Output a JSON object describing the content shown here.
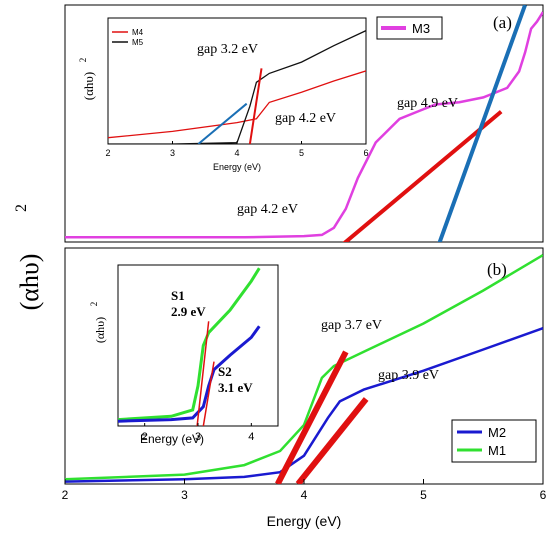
{
  "ylabel": "(αhυ)",
  "ylabel_sup": "2",
  "xlabel": "Energy (eV)",
  "chart_data": [
    {
      "type": "line",
      "panel_label": "(a)",
      "xlim": [
        2,
        6
      ],
      "legend": {
        "placement": "top-right",
        "entries": [
          {
            "name": "M3",
            "color": "#e040e0"
          }
        ]
      },
      "series": [
        {
          "name": "M3",
          "color": "#e040e0",
          "x": [
            2.0,
            2.5,
            3.0,
            3.5,
            4.0,
            4.15,
            4.25,
            4.35,
            4.45,
            4.6,
            4.8,
            4.95,
            5.1,
            5.3,
            5.5,
            5.7,
            5.8,
            5.85,
            5.9,
            5.95,
            6.0
          ],
          "y": [
            0.02,
            0.02,
            0.02,
            0.02,
            0.025,
            0.03,
            0.06,
            0.14,
            0.27,
            0.42,
            0.52,
            0.55,
            0.58,
            0.59,
            0.61,
            0.65,
            0.72,
            0.8,
            0.9,
            0.93,
            0.97
          ]
        }
      ],
      "fits": [
        {
          "color": "#e01010",
          "x": [
            4.23,
            5.65
          ],
          "y": [
            -0.05,
            0.55
          ]
        },
        {
          "color": "#1a6fb5",
          "x": [
            5.1,
            5.85
          ],
          "y": [
            -0.05,
            1.0
          ]
        }
      ],
      "annotations": [
        "gap 4.2 eV",
        "gap 4.9 eV"
      ],
      "inset": {
        "type": "line",
        "xlim": [
          2,
          6
        ],
        "xticks": [
          2,
          3,
          4,
          5,
          6
        ],
        "xlabel": "Energy (eV)",
        "ylabel": "(αhυ)",
        "ylabel_sup": "2",
        "legend": {
          "placement": "top-left",
          "entries": [
            {
              "name": "M4",
              "color": "#e01010"
            },
            {
              "name": "M5",
              "color": "#111111"
            }
          ]
        },
        "series": [
          {
            "name": "M4",
            "color": "#e01010",
            "x": [
              2,
              3,
              4,
              4.3,
              4.5,
              5,
              5.5,
              6
            ],
            "y": [
              0.05,
              0.1,
              0.17,
              0.2,
              0.33,
              0.41,
              0.5,
              0.58
            ]
          },
          {
            "name": "M5",
            "color": "#111111",
            "x": [
              2,
              3,
              4,
              4.2,
              4.3,
              4.5,
              5,
              5.5,
              6
            ],
            "y": [
              0.0,
              0.0,
              0.01,
              0.3,
              0.49,
              0.56,
              0.65,
              0.78,
              0.9
            ]
          }
        ],
        "fits": [
          {
            "color": "#e01010",
            "x": [
              4.2,
              4.38
            ],
            "y": [
              0.0,
              0.6
            ]
          },
          {
            "color": "#1a6fb5",
            "x": [
              3.4,
              4.15
            ],
            "y": [
              0.0,
              0.32
            ]
          }
        ],
        "annotations": [
          "gap 3.2 eV",
          "gap 4.2 eV"
        ]
      }
    },
    {
      "type": "line",
      "panel_label": "(b)",
      "xlim": [
        2,
        6
      ],
      "xticks": [
        2,
        3,
        4,
        5,
        6
      ],
      "xlabel": "Energy (eV)",
      "legend": {
        "placement": "bottom-right",
        "entries": [
          {
            "name": "M2",
            "color": "#1a1ad0"
          },
          {
            "name": "M1",
            "color": "#30e030"
          }
        ]
      },
      "series": [
        {
          "name": "M1",
          "color": "#30e030",
          "x": [
            2,
            3,
            3.5,
            3.8,
            4.0,
            4.15,
            4.25,
            4.5,
            5.0,
            5.5,
            6.0
          ],
          "y": [
            0.02,
            0.04,
            0.08,
            0.14,
            0.25,
            0.45,
            0.5,
            0.56,
            0.68,
            0.82,
            0.97
          ]
        },
        {
          "name": "M2",
          "color": "#1a1ad0",
          "x": [
            2,
            3,
            3.5,
            3.8,
            4.0,
            4.2,
            4.3,
            4.5,
            5.0,
            5.5,
            6.0
          ],
          "y": [
            0.01,
            0.02,
            0.03,
            0.05,
            0.12,
            0.28,
            0.35,
            0.4,
            0.48,
            0.57,
            0.66
          ]
        }
      ],
      "fits": [
        {
          "color": "#e01010",
          "x": [
            3.78,
            4.35
          ],
          "y": [
            0.0,
            0.56
          ]
        },
        {
          "color": "#e01010",
          "x": [
            3.95,
            4.52
          ],
          "y": [
            0.0,
            0.36
          ]
        }
      ],
      "annotations": [
        "gap 3.7 eV",
        "gap 3.9 eV"
      ],
      "inset": {
        "type": "line",
        "xlim": [
          1.5,
          4.5
        ],
        "xticks": [
          2,
          3,
          4
        ],
        "xlabel": "Energy (eV)",
        "ylabel": "(αhυ)",
        "ylabel_sup": "2",
        "series": [
          {
            "name": "S1",
            "color": "#30e030",
            "x": [
              1.5,
              2.5,
              2.9,
              3.0,
              3.1,
              3.2,
              3.6,
              4.0,
              4.15
            ],
            "y": [
              0.04,
              0.06,
              0.1,
              0.25,
              0.5,
              0.58,
              0.72,
              0.9,
              0.98
            ]
          },
          {
            "name": "S2",
            "color": "#1a1ad0",
            "x": [
              1.5,
              2.5,
              2.9,
              3.1,
              3.2,
              3.3,
              3.6,
              4.0,
              4.15
            ],
            "y": [
              0.03,
              0.04,
              0.05,
              0.12,
              0.25,
              0.35,
              0.44,
              0.55,
              0.62
            ]
          }
        ],
        "fits": [
          {
            "color": "#e01010",
            "x": [
              2.95,
              3.2
            ],
            "y": [
              -0.1,
              0.65
            ]
          },
          {
            "color": "#e01010",
            "x": [
              3.05,
              3.3
            ],
            "y": [
              -0.1,
              0.4
            ]
          }
        ],
        "annotations": [
          {
            "title": "S1",
            "value": "2.9 eV",
            "color": "#30e030"
          },
          {
            "title": "S2",
            "value": "3.1 eV",
            "color": "#1a1ad0"
          }
        ]
      }
    }
  ]
}
